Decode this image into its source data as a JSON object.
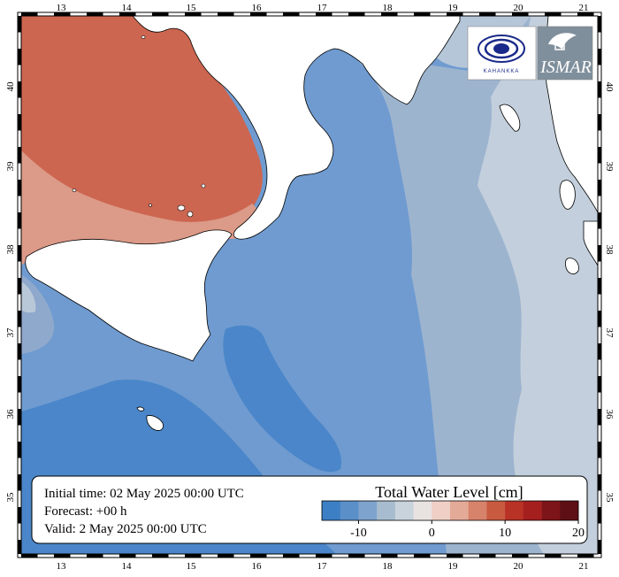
{
  "info": {
    "initial": "Initial time: 02 May 2025 00:00 UTC",
    "forecast": "Forecast: +00 h",
    "valid": "Valid:  2 May 2025 00:00 UTC"
  },
  "legend": {
    "title": "Total Water Level [cm]",
    "colors": [
      "#3d7fc4",
      "#5b8fc8",
      "#7ea3cd",
      "#a8bccf",
      "#c9d3dc",
      "#e8e2e0",
      "#efcfc6",
      "#e3aa98",
      "#d7826a",
      "#c85a40",
      "#b83226",
      "#a51f1f",
      "#7d1419",
      "#5e0f16"
    ],
    "ticks": [
      {
        "value": -10,
        "label": "-10"
      },
      {
        "value": 0,
        "label": "0"
      },
      {
        "value": 10,
        "label": "10"
      },
      {
        "value": 20,
        "label": "20"
      }
    ]
  },
  "axes": {
    "lon_ticks": [
      "13",
      "14",
      "15",
      "16",
      "17",
      "18",
      "19",
      "20",
      "21"
    ],
    "lat_ticks": [
      "40",
      "39",
      "38",
      "37",
      "36",
      "35"
    ]
  },
  "logos": {
    "left": "KAHANKKA",
    "right": "ISMAR"
  },
  "colors": {
    "land": "#ffffff",
    "sea_deep_blue": "#5b8fc8",
    "sea_mid_blue": "#6f9bd0",
    "sea_light_blue": "#9db4cf",
    "sea_pale": "#c3cfdc",
    "tyrrhenian_red": "#cc6650",
    "tyrrhenian_pink": "#dd9a88"
  }
}
